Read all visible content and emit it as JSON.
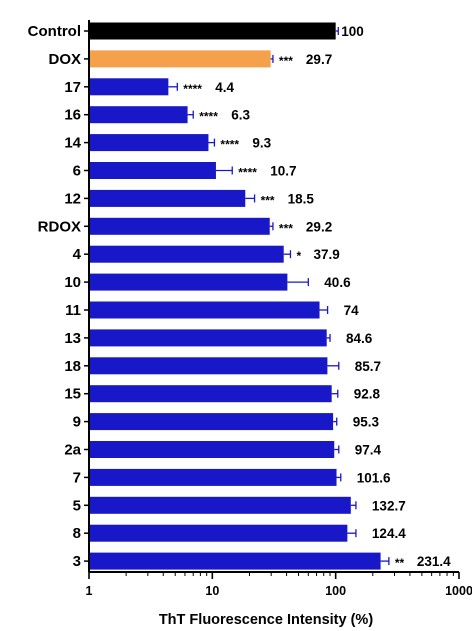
{
  "chart_data": {
    "type": "bar",
    "orientation": "horizontal",
    "x_scale": "log",
    "xlim": [
      1,
      1000
    ],
    "x_ticks": [
      "1",
      "10",
      "100",
      "1000"
    ],
    "xlabel": "ThT Fluorescence Intensity (%)",
    "ylabel": "",
    "title": "",
    "grid": false,
    "categories": [
      "Control",
      "DOX",
      "17",
      "16",
      "14",
      "6",
      "12",
      "RDOX",
      "4",
      "10",
      "11",
      "13",
      "18",
      "15",
      "9",
      "2a",
      "7",
      "5",
      "8",
      "3"
    ],
    "values": [
      100,
      29.7,
      4.4,
      6.3,
      9.3,
      10.7,
      18.5,
      29.2,
      37.9,
      40.6,
      74,
      84.6,
      85.7,
      92.8,
      95.3,
      97.4,
      101.6,
      132.7,
      124.4,
      231.4
    ],
    "value_labels": [
      "100",
      "29.7",
      "4.4",
      "6.3",
      "9.3",
      "10.7",
      "18.5",
      "29.2",
      "37.9",
      "40.6",
      "74",
      "84.6",
      "85.7",
      "92.8",
      "95.3",
      "97.4",
      "101.6",
      "132.7",
      "124.4",
      "231.4"
    ],
    "error_upper": [
      105,
      31,
      5.2,
      7.0,
      10.4,
      14.5,
      22,
      31,
      43,
      60,
      86,
      90,
      106,
      104,
      102,
      106,
      110,
      146,
      146,
      270
    ],
    "significance": [
      "",
      "***",
      "****",
      "****",
      "****",
      "****",
      "***",
      "***",
      "*",
      "",
      "",
      "",
      "",
      "",
      "",
      "",
      "",
      "",
      "",
      "**"
    ],
    "bar_colors": [
      "#000000",
      "#F5A04A",
      "#1818C8",
      "#1818C8",
      "#1818C8",
      "#1818C8",
      "#1818C8",
      "#1818C8",
      "#1818C8",
      "#1818C8",
      "#1818C8",
      "#1818C8",
      "#1818C8",
      "#1818C8",
      "#1818C8",
      "#1818C8",
      "#1818C8",
      "#1818C8",
      "#1818C8",
      "#1818C8"
    ],
    "error_bar_color": "#1818C8"
  }
}
